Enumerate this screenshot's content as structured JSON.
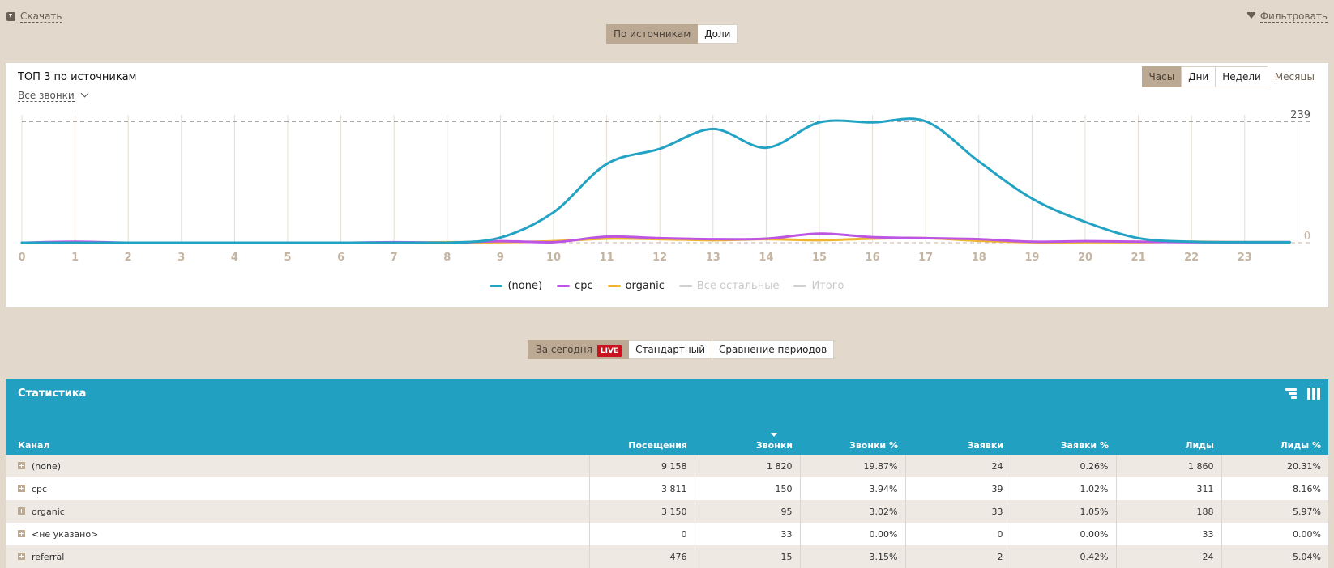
{
  "toolbar": {
    "download_label": "Скачать",
    "filter_label": "Фильтровать",
    "view_tabs": [
      {
        "label": "По источникам",
        "active": true
      },
      {
        "label": "Доли",
        "active": false
      }
    ]
  },
  "chart_card": {
    "title": "ТОП 3 по источникам",
    "dropdown_value": "Все звонки",
    "period_tabs": [
      {
        "label": "Часы",
        "active": true
      },
      {
        "label": "Дни",
        "active": false
      },
      {
        "label": "Недели",
        "active": false
      },
      {
        "label": "Месяцы",
        "active": false
      }
    ],
    "y_max_label": "239",
    "y_min_label": "0",
    "legend": [
      {
        "label": "(none)",
        "color": "#23a3c4",
        "enabled": true
      },
      {
        "label": "cpc",
        "color": "#bd55e3",
        "enabled": true
      },
      {
        "label": "organic",
        "color": "#f0b52d",
        "enabled": true
      },
      {
        "label": "Все остальные",
        "color": "#cfcfcf",
        "enabled": false
      },
      {
        "label": "Итого",
        "color": "#cfcfcf",
        "enabled": false
      }
    ]
  },
  "chart_data": {
    "type": "line",
    "title": "ТОП 3 по источникам",
    "xlabel": "",
    "ylabel": "",
    "x": [
      0,
      1,
      2,
      3,
      4,
      5,
      6,
      7,
      8,
      9,
      10,
      11,
      12,
      13,
      14,
      15,
      16,
      17,
      18,
      19,
      20,
      21,
      22,
      23
    ],
    "ylim": [
      0,
      239
    ],
    "y_reference_lines": [
      0,
      239
    ],
    "grid": "vertical",
    "legend_position": "bottom",
    "series": [
      {
        "name": "(none)",
        "color": "#23a3c4",
        "values": [
          0,
          0,
          0,
          0,
          0,
          0,
          0,
          0,
          0,
          10,
          60,
          155,
          185,
          224,
          187,
          237,
          237,
          239,
          160,
          87,
          41,
          9,
          2,
          1
        ]
      },
      {
        "name": "cpc",
        "color": "#bd55e3",
        "values": [
          0,
          2,
          0,
          0,
          0,
          0,
          0,
          1,
          0,
          3,
          1,
          12,
          9,
          7,
          8,
          18,
          11,
          9,
          7,
          2,
          3,
          2,
          1,
          1
        ]
      },
      {
        "name": "organic",
        "color": "#f0b52d",
        "values": [
          0,
          0,
          0,
          0,
          0,
          0,
          0,
          0,
          1,
          1,
          3,
          8,
          7,
          5,
          7,
          5,
          8,
          9,
          4,
          1,
          1,
          1,
          2,
          1
        ]
      }
    ]
  },
  "mode_tabs": [
    {
      "label": "За сегодня",
      "badge": "LIVE",
      "active": true
    },
    {
      "label": "Стандартный",
      "active": false
    },
    {
      "label": "Сравнение периодов",
      "active": false
    }
  ],
  "stats": {
    "title": "Статистика",
    "columns": [
      "Канал",
      "Посещения",
      "Звонки",
      "Звонки %",
      "Заявки",
      "Заявки %",
      "Лиды",
      "Лиды %"
    ],
    "sorted_column": "Звонки",
    "rows": [
      {
        "channel": "(none)",
        "visits": "9 158",
        "calls": "1 820",
        "calls_pct": "19.87%",
        "requests": "24",
        "requests_pct": "0.26%",
        "leads": "1 860",
        "leads_pct": "20.31%"
      },
      {
        "channel": "cpc",
        "visits": "3 811",
        "calls": "150",
        "calls_pct": "3.94%",
        "requests": "39",
        "requests_pct": "1.02%",
        "leads": "311",
        "leads_pct": "8.16%"
      },
      {
        "channel": "organic",
        "visits": "3 150",
        "calls": "95",
        "calls_pct": "3.02%",
        "requests": "33",
        "requests_pct": "1.05%",
        "leads": "188",
        "leads_pct": "5.97%"
      },
      {
        "channel": "<не указано>",
        "visits": "0",
        "calls": "33",
        "calls_pct": "0.00%",
        "requests": "0",
        "requests_pct": "0.00%",
        "leads": "33",
        "leads_pct": "0.00%"
      },
      {
        "channel": "referral",
        "visits": "476",
        "calls": "15",
        "calls_pct": "3.15%",
        "requests": "2",
        "requests_pct": "0.42%",
        "leads": "24",
        "leads_pct": "5.04%"
      }
    ]
  }
}
